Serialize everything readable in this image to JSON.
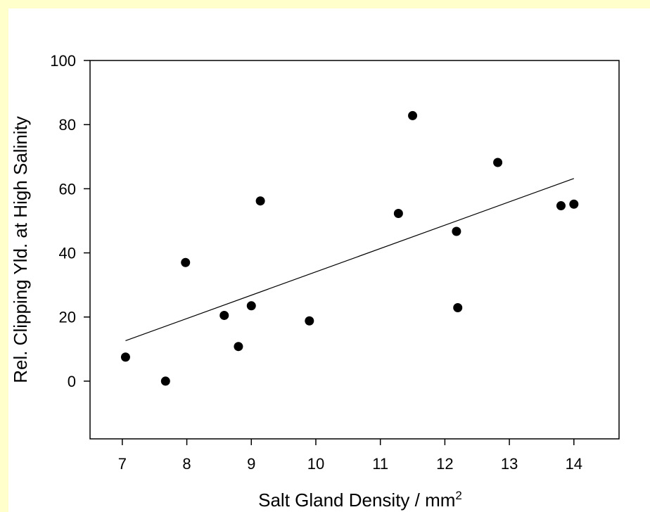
{
  "chart_data": {
    "type": "scatter",
    "title": "",
    "xlabel": "Salt Gland Density / mm",
    "xlabel_superscript": "2",
    "ylabel": "Rel. Clipping Yld. at High Salinity",
    "xlim": [
      6.5,
      14.7
    ],
    "ylim": [
      -18,
      100
    ],
    "x_ticks": [
      7,
      8,
      9,
      10,
      11,
      12,
      13,
      14
    ],
    "x_tick_labels": [
      "7",
      "8",
      "9",
      "10",
      "11",
      "12",
      "13",
      "14"
    ],
    "y_ticks": [
      0,
      20,
      40,
      60,
      80,
      100
    ],
    "y_tick_labels": [
      "0",
      "20",
      "40",
      "60",
      "80",
      "100"
    ],
    "grid": false,
    "series": [
      {
        "points": [
          {
            "x": 7.05,
            "y": 7.5
          },
          {
            "x": 7.67,
            "y": 0
          },
          {
            "x": 7.98,
            "y": 37
          },
          {
            "x": 8.58,
            "y": 20.5
          },
          {
            "x": 8.8,
            "y": 10.8
          },
          {
            "x": 9.0,
            "y": 23.5
          },
          {
            "x": 9.14,
            "y": 56.2
          },
          {
            "x": 9.9,
            "y": 18.8
          },
          {
            "x": 11.28,
            "y": 52.3
          },
          {
            "x": 11.5,
            "y": 82.8
          },
          {
            "x": 12.18,
            "y": 46.7
          },
          {
            "x": 12.2,
            "y": 22.9
          },
          {
            "x": 12.82,
            "y": 68.2
          },
          {
            "x": 13.8,
            "y": 54.7
          },
          {
            "x": 14.0,
            "y": 55.2
          }
        ],
        "color": "#000000"
      }
    ],
    "regression_line": {
      "x": [
        7.05,
        14.0
      ],
      "y": [
        12.6,
        63.2
      ],
      "color": "#000000"
    }
  }
}
